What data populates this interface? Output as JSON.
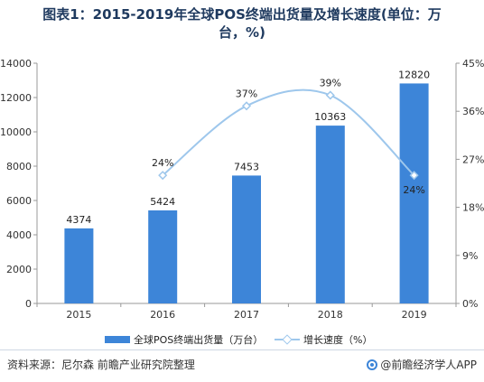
{
  "title": {
    "line1": "图表1：2015-2019年全球POS终端出货量及增长速度(单位：万",
    "line2": "台，%)"
  },
  "source": "资料来源：尼尔森  前瞻产业研究院整理",
  "brand": "@前瞻经济学人APP",
  "colors": {
    "bar": "#3d85d8",
    "line": "#9ec7ec",
    "title": "#1f3a5f"
  },
  "chart_data": {
    "type": "bar",
    "categories": [
      "2015",
      "2016",
      "2017",
      "2018",
      "2019"
    ],
    "series": [
      {
        "name": "全球POS终端出货量（万台）",
        "type": "bar",
        "axis": "left",
        "values": [
          4374,
          5424,
          7453,
          10363,
          12820
        ],
        "labels": [
          "4374",
          "5424",
          "7453",
          "10363",
          "12820"
        ]
      },
      {
        "name": "增长速度（%）",
        "type": "line",
        "axis": "right",
        "points": [
          {
            "category": "2016",
            "value": 24,
            "label": "24%"
          },
          {
            "category": "2017",
            "value": 37,
            "label": "37%"
          },
          {
            "category": "2018",
            "value": 39,
            "label": "39%"
          },
          {
            "category": "2019",
            "value": 24,
            "label": "24%"
          }
        ]
      }
    ],
    "y_left": {
      "min": 0,
      "max": 14000,
      "ticks": [
        "0",
        "2000",
        "4000",
        "6000",
        "8000",
        "10000",
        "12000",
        "14000"
      ]
    },
    "y_right": {
      "min": 0,
      "max": 45,
      "ticks": [
        "0%",
        "9%",
        "18%",
        "27%",
        "36%",
        "45%"
      ]
    },
    "grid": false,
    "legend_position": "bottom"
  }
}
